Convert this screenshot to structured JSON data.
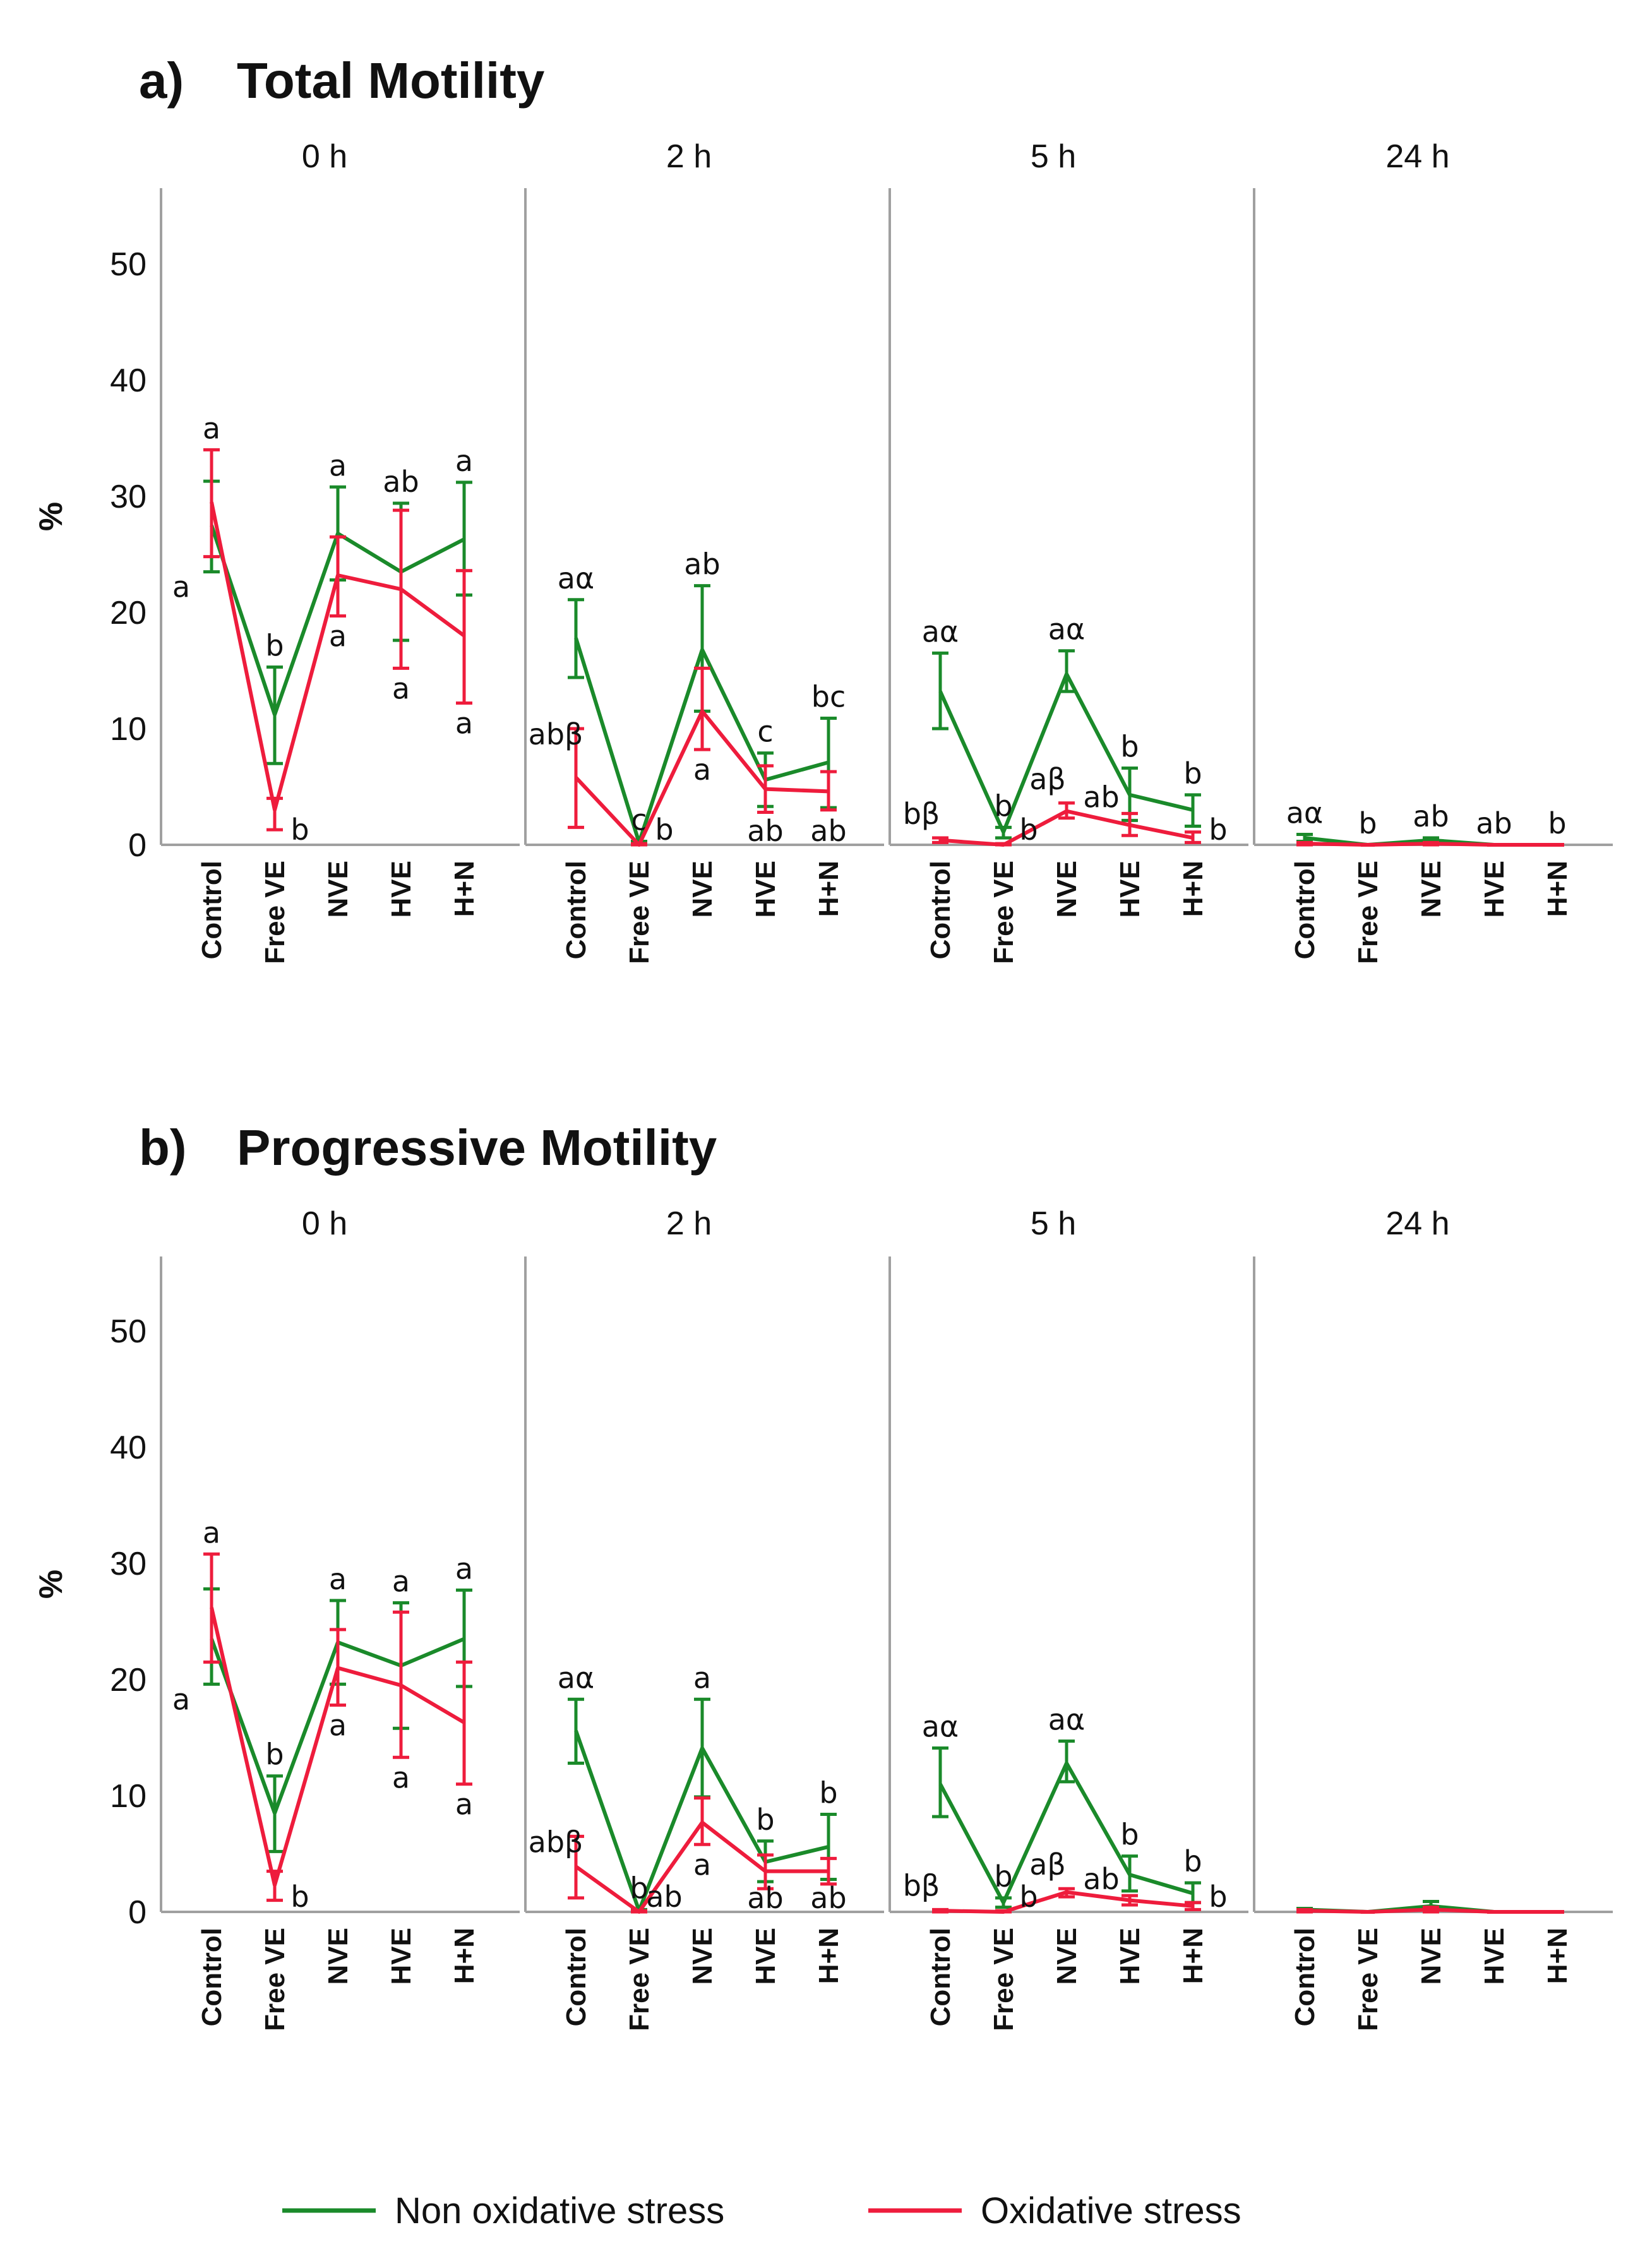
{
  "colors": {
    "non_oxidative": "#1a8a2a",
    "oxidative": "#ee1c3c",
    "axis": "#a0a0a0"
  },
  "legend": {
    "items": [
      {
        "label": "Non oxidative stress",
        "color": "#1a8a2a"
      },
      {
        "label": "Oxidative stress",
        "color": "#ee1c3c"
      }
    ]
  },
  "chart_data": [
    {
      "type": "line",
      "title": "Total Motility",
      "panel_letter": "a)",
      "ylabel": "%",
      "ylim": [
        0,
        55
      ],
      "yticks": [
        "0",
        "10",
        "20",
        "30",
        "40",
        "50"
      ],
      "categories": [
        "Control",
        "Free VE",
        "NVE",
        "HVE",
        "H+N"
      ],
      "facets": [
        {
          "label": "0 h",
          "series": [
            {
              "name": "Non oxidative stress",
              "values": [
                27.5,
                11.2,
                26.8,
                23.5,
                26.3
              ],
              "err_low": [
                23.5,
                7.0,
                22.8,
                17.6,
                21.5
              ],
              "err_high": [
                31.3,
                15.3,
                30.8,
                29.4,
                31.2
              ],
              "letters": [
                "a",
                "b",
                "a",
                "ab",
                "a"
              ]
            },
            {
              "name": "Oxidative stress",
              "values": [
                29.5,
                3.0,
                23.2,
                22.0,
                18.0
              ],
              "err_low": [
                24.8,
                1.3,
                19.7,
                15.2,
                12.2
              ],
              "err_high": [
                34.0,
                4.0,
                26.5,
                28.8,
                23.6
              ],
              "letters": [
                "a",
                "b",
                "a",
                "a",
                "a"
              ]
            }
          ]
        },
        {
          "label": "2 h",
          "series": [
            {
              "name": "Non oxidative stress",
              "values": [
                17.8,
                0.2,
                16.8,
                5.6,
                7.1
              ],
              "err_low": [
                14.4,
                0.0,
                11.5,
                3.3,
                3.2
              ],
              "err_high": [
                21.1,
                0.3,
                22.3,
                7.9,
                10.9
              ],
              "letters": [
                "aα",
                "c",
                "ab",
                "c",
                "bc"
              ]
            },
            {
              "name": "Oxidative stress",
              "values": [
                5.8,
                0.0,
                11.5,
                4.8,
                4.6
              ],
              "err_low": [
                1.5,
                0.0,
                8.2,
                2.8,
                3.0
              ],
              "err_high": [
                10.0,
                0.1,
                15.2,
                6.8,
                6.3
              ],
              "letters": [
                "abβ",
                "b",
                "a",
                "ab",
                "ab"
              ]
            }
          ]
        },
        {
          "label": "5 h",
          "series": [
            {
              "name": "Non oxidative stress",
              "values": [
                13.2,
                1.1,
                14.7,
                4.3,
                3.0
              ],
              "err_low": [
                10.0,
                0.6,
                13.2,
                2.1,
                1.6
              ],
              "err_high": [
                16.5,
                1.5,
                16.7,
                6.6,
                4.3
              ],
              "letters": [
                "aα",
                "b",
                "aα",
                "b",
                "b"
              ]
            },
            {
              "name": "Oxidative stress",
              "values": [
                0.4,
                0.0,
                2.9,
                1.7,
                0.6
              ],
              "err_low": [
                0.2,
                0.0,
                2.3,
                0.8,
                0.2
              ],
              "err_high": [
                0.6,
                0.1,
                3.6,
                2.7,
                1.1
              ],
              "letters": [
                "bβ",
                "b",
                "aβ",
                "ab",
                "b"
              ]
            }
          ]
        },
        {
          "label": "24 h",
          "series": [
            {
              "name": "Non oxidative stress",
              "values": [
                0.6,
                0.0,
                0.4,
                0.0,
                0.0
              ],
              "err_low": [
                0.3,
                0.0,
                0.2,
                0.0,
                0.0
              ],
              "err_high": [
                0.9,
                0.0,
                0.6,
                0.0,
                0.0
              ],
              "letters": [
                "aα",
                "b",
                "ab",
                "ab",
                "b"
              ]
            },
            {
              "name": "Oxidative stress",
              "values": [
                0.1,
                0.0,
                0.1,
                0.0,
                0.0
              ],
              "err_low": [
                0.0,
                0.0,
                0.0,
                0.0,
                0.0
              ],
              "err_high": [
                0.2,
                0.0,
                0.2,
                0.0,
                0.0
              ],
              "letters": [
                "",
                "",
                "",
                "",
                ""
              ]
            }
          ]
        }
      ]
    },
    {
      "type": "line",
      "title": "Progressive Motility",
      "panel_letter": "b)",
      "ylabel": "%",
      "ylim": [
        0,
        55
      ],
      "yticks": [
        "0",
        "10",
        "20",
        "30",
        "40",
        "50"
      ],
      "categories": [
        "Control",
        "Free VE",
        "NVE",
        "HVE",
        "H+N"
      ],
      "facets": [
        {
          "label": "0 h",
          "series": [
            {
              "name": "Non oxidative stress",
              "values": [
                23.5,
                8.5,
                23.2,
                21.2,
                23.5
              ],
              "err_low": [
                19.6,
                5.2,
                19.6,
                15.8,
                19.4
              ],
              "err_high": [
                27.8,
                11.7,
                26.8,
                26.6,
                27.7
              ],
              "letters": [
                "a",
                "b",
                "a",
                "a",
                "a"
              ]
            },
            {
              "name": "Oxidative stress",
              "values": [
                26.2,
                2.3,
                21.0,
                19.5,
                16.3
              ],
              "err_low": [
                21.5,
                1.0,
                17.8,
                13.3,
                11.0
              ],
              "err_high": [
                30.8,
                3.5,
                24.3,
                25.8,
                21.5
              ],
              "letters": [
                "a",
                "b",
                "a",
                "a",
                "a"
              ]
            }
          ]
        },
        {
          "label": "2 h",
          "series": [
            {
              "name": "Non oxidative stress",
              "values": [
                15.6,
                0.1,
                14.1,
                4.3,
                5.6
              ],
              "err_low": [
                12.8,
                0.0,
                9.9,
                2.6,
                2.8
              ],
              "err_high": [
                18.3,
                0.2,
                18.3,
                6.1,
                8.4
              ],
              "letters": [
                "aα",
                "b",
                "a",
                "b",
                "b"
              ]
            },
            {
              "name": "Oxidative stress",
              "values": [
                3.9,
                0.0,
                7.7,
                3.5,
                3.5
              ],
              "err_low": [
                1.2,
                0.0,
                5.8,
                2.0,
                2.4
              ],
              "err_high": [
                6.5,
                0.1,
                9.8,
                4.9,
                4.6
              ],
              "letters": [
                "abβ",
                "ab",
                "a",
                "ab",
                "ab"
              ]
            }
          ]
        },
        {
          "label": "5 h",
          "series": [
            {
              "name": "Non oxidative stress",
              "values": [
                11.0,
                0.8,
                12.8,
                3.2,
                1.6
              ],
              "err_low": [
                8.2,
                0.4,
                11.2,
                1.8,
                0.8
              ],
              "err_high": [
                14.1,
                1.2,
                14.7,
                4.8,
                2.5
              ],
              "letters": [
                "aα",
                "b",
                "aα",
                "b",
                "b"
              ]
            },
            {
              "name": "Oxidative stress",
              "values": [
                0.1,
                0.0,
                1.7,
                1.0,
                0.5
              ],
              "err_low": [
                0.0,
                0.0,
                1.3,
                0.6,
                0.2
              ],
              "err_high": [
                0.2,
                0.1,
                2.0,
                1.4,
                0.8
              ],
              "letters": [
                "bβ",
                "b",
                "aβ",
                "ab",
                "b"
              ]
            }
          ]
        },
        {
          "label": "24 h",
          "series": [
            {
              "name": "Non oxidative stress",
              "values": [
                0.2,
                0.0,
                0.5,
                0.0,
                0.0
              ],
              "err_low": [
                0.1,
                0.0,
                0.2,
                0.0,
                0.0
              ],
              "err_high": [
                0.3,
                0.0,
                0.9,
                0.0,
                0.0
              ],
              "letters": [
                "",
                "",
                "",
                "",
                ""
              ]
            },
            {
              "name": "Oxidative stress",
              "values": [
                0.1,
                0.0,
                0.2,
                0.0,
                0.0
              ],
              "err_low": [
                0.0,
                0.0,
                0.0,
                0.0,
                0.0
              ],
              "err_high": [
                0.2,
                0.0,
                0.4,
                0.0,
                0.0
              ],
              "letters": [
                "",
                "",
                "",
                "",
                ""
              ]
            }
          ]
        }
      ]
    }
  ]
}
